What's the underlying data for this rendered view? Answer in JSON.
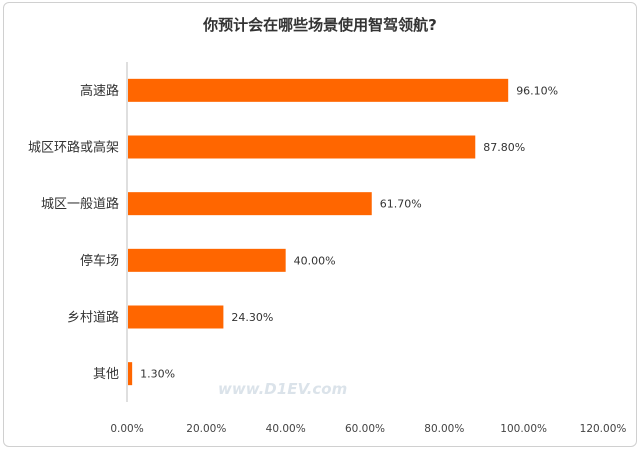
{
  "chart_data": {
    "type": "bar",
    "orientation": "horizontal",
    "title": "你预计会在哪些场景使用智驾领航?",
    "categories": [
      "高速路",
      "城区环路或高架",
      "城区一般道路",
      "停车场",
      "乡村道路",
      "其他"
    ],
    "values": [
      96.1,
      87.8,
      61.7,
      40.0,
      24.3,
      1.3
    ],
    "value_labels": [
      "96.10%",
      "87.80%",
      "61.70%",
      "40.00%",
      "24.30%",
      "1.30%"
    ],
    "xlim": [
      0,
      120
    ],
    "xticks": [
      "0.00%",
      "20.00%",
      "40.00%",
      "60.00%",
      "80.00%",
      "100.00%",
      "120.00%"
    ],
    "grid": false,
    "bar_color": "#ff6600"
  },
  "watermark": {
    "text": "www.D1EV.com"
  }
}
